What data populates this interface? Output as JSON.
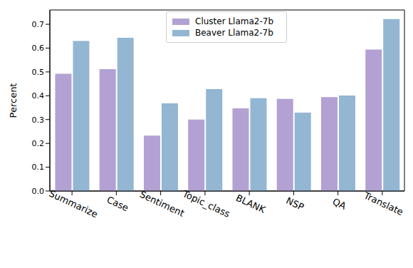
{
  "chart_data": {
    "type": "bar",
    "y_label": "Percent",
    "categories": [
      "Summarize",
      "Case",
      "Sentiment",
      "Topic_class",
      "BLANK",
      "NSP",
      "QA",
      "Translate"
    ],
    "series": [
      {
        "name": "Cluster Llama2-7b",
        "color": "#b3a1d3",
        "values": [
          0.492,
          0.512,
          0.233,
          0.3,
          0.347,
          0.387,
          0.394,
          0.594
        ]
      },
      {
        "name": "Beaver Llama2-7b",
        "color": "#93b6d3",
        "values": [
          0.63,
          0.643,
          0.368,
          0.428,
          0.39,
          0.329,
          0.401,
          0.722
        ]
      }
    ],
    "ylim": [
      0,
      0.76
    ],
    "yticks": [
      {
        "value": 0,
        "label": "0.0"
      },
      0.1,
      0.2,
      0.3,
      0.4,
      0.5,
      0.6,
      0.7
    ],
    "legend": "upper center",
    "grid": false
  }
}
